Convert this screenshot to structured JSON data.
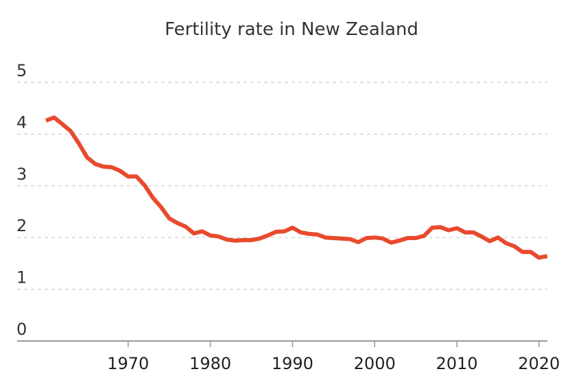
{
  "chart_data": {
    "type": "line",
    "title": "Fertility rate in New Zealand",
    "xlabel": "",
    "ylabel": "",
    "ylim": [
      0,
      5
    ],
    "xlim": [
      1960,
      2021
    ],
    "grid": true,
    "yticks": [
      0,
      1,
      2,
      3,
      4,
      5
    ],
    "xticks": [
      1970,
      1980,
      1990,
      2000,
      2010,
      2020
    ],
    "line_color": "#e84a2e",
    "series": [
      {
        "name": "Fertility rate",
        "x": [
          1960,
          1961,
          1962,
          1963,
          1964,
          1965,
          1966,
          1967,
          1968,
          1969,
          1970,
          1971,
          1972,
          1973,
          1974,
          1975,
          1976,
          1977,
          1978,
          1979,
          1980,
          1981,
          1982,
          1983,
          1984,
          1985,
          1986,
          1987,
          1988,
          1989,
          1990,
          1991,
          1992,
          1993,
          1994,
          1995,
          1996,
          1997,
          1998,
          1999,
          2000,
          2001,
          2002,
          2003,
          2004,
          2005,
          2006,
          2007,
          2008,
          2009,
          2010,
          2011,
          2012,
          2013,
          2014,
          2015,
          2016,
          2017,
          2018,
          2019,
          2020,
          2021
        ],
        "values": [
          4.26,
          4.32,
          4.19,
          4.06,
          3.82,
          3.55,
          3.42,
          3.37,
          3.36,
          3.29,
          3.18,
          3.18,
          3.01,
          2.77,
          2.59,
          2.37,
          2.28,
          2.21,
          2.08,
          2.12,
          2.04,
          2.02,
          1.96,
          1.94,
          1.95,
          1.95,
          1.98,
          2.04,
          2.11,
          2.12,
          2.19,
          2.1,
          2.07,
          2.06,
          2.0,
          1.99,
          1.98,
          1.97,
          1.91,
          1.99,
          2.0,
          1.98,
          1.9,
          1.94,
          1.99,
          1.99,
          2.03,
          2.19,
          2.2,
          2.14,
          2.18,
          2.1,
          2.1,
          2.02,
          1.93,
          2.0,
          1.89,
          1.83,
          1.72,
          1.72,
          1.61,
          1.64
        ]
      }
    ]
  }
}
